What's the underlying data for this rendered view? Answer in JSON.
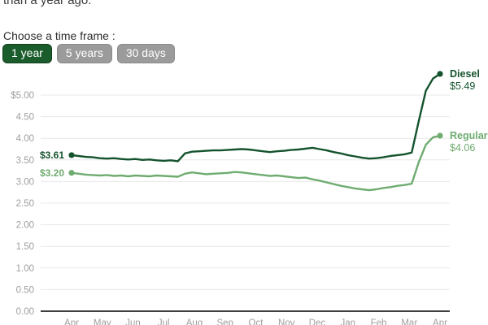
{
  "page": {
    "intro_text": "than a year ago.",
    "timeframe_label": "Choose a time frame :",
    "timeframe_options": [
      {
        "label": "1 year",
        "selected": true
      },
      {
        "label": "5 years",
        "selected": false
      },
      {
        "label": "30 days",
        "selected": false
      }
    ]
  },
  "colors": {
    "diesel_green": "#14532d",
    "regular_green": "#6fac70",
    "selected_button_bg": "#1a5c2b",
    "unselected_button_bg": "#9b9b9b",
    "button_text": "#ffffff",
    "axis_label_gray": "#9e9e9e",
    "gridline_gray": "#e8e8e8",
    "axis_line_dark": "#3f3f3f",
    "body_text": "#3a3a3a"
  },
  "chart_data": {
    "type": "line",
    "x_unit": "weeks, Apr to Apr (one year)",
    "x_month_labels": [
      "Apr",
      "May",
      "Jun",
      "Jul",
      "Aug",
      "Sep",
      "Oct",
      "Nov",
      "Dec",
      "Jan",
      "Feb",
      "Mar",
      "Apr"
    ],
    "y_tick_labels": [
      "$5.00",
      "4.50",
      "4.00",
      "3.50",
      "3.00",
      "2.50",
      "2.00",
      "1.50",
      "1.00",
      "0.50",
      "0.00"
    ],
    "y_tick_values": [
      5.0,
      4.5,
      4.0,
      3.5,
      3.0,
      2.5,
      2.0,
      1.5,
      1.0,
      0.5,
      0.0
    ],
    "ylim": [
      0,
      5.6
    ],
    "grid": true,
    "legend_position": "line-end-labels",
    "series": [
      {
        "name": "Diesel",
        "color": "#14532d",
        "start_label": "$3.61",
        "end_label": "$5.49",
        "start_value": 3.61,
        "end_value": 5.49,
        "values": [
          3.61,
          3.59,
          3.57,
          3.56,
          3.54,
          3.53,
          3.54,
          3.52,
          3.51,
          3.52,
          3.5,
          3.51,
          3.49,
          3.48,
          3.49,
          3.47,
          3.65,
          3.69,
          3.7,
          3.71,
          3.72,
          3.72,
          3.73,
          3.74,
          3.75,
          3.74,
          3.72,
          3.7,
          3.68,
          3.7,
          3.71,
          3.73,
          3.74,
          3.76,
          3.78,
          3.75,
          3.72,
          3.68,
          3.65,
          3.61,
          3.58,
          3.55,
          3.53,
          3.54,
          3.56,
          3.59,
          3.61,
          3.63,
          3.67,
          4.4,
          5.1,
          5.38,
          5.49
        ]
      },
      {
        "name": "Regular",
        "color": "#6fac70",
        "start_label": "$3.20",
        "end_label": "$4.06",
        "start_value": 3.2,
        "end_value": 4.06,
        "values": [
          3.2,
          3.18,
          3.16,
          3.15,
          3.14,
          3.15,
          3.13,
          3.14,
          3.12,
          3.14,
          3.13,
          3.12,
          3.14,
          3.13,
          3.12,
          3.11,
          3.18,
          3.21,
          3.19,
          3.17,
          3.18,
          3.19,
          3.2,
          3.22,
          3.21,
          3.19,
          3.17,
          3.15,
          3.13,
          3.14,
          3.12,
          3.1,
          3.08,
          3.09,
          3.05,
          3.02,
          2.98,
          2.94,
          2.9,
          2.87,
          2.84,
          2.82,
          2.8,
          2.82,
          2.85,
          2.87,
          2.9,
          2.92,
          2.95,
          3.45,
          3.85,
          4.02,
          4.06
        ]
      }
    ]
  }
}
